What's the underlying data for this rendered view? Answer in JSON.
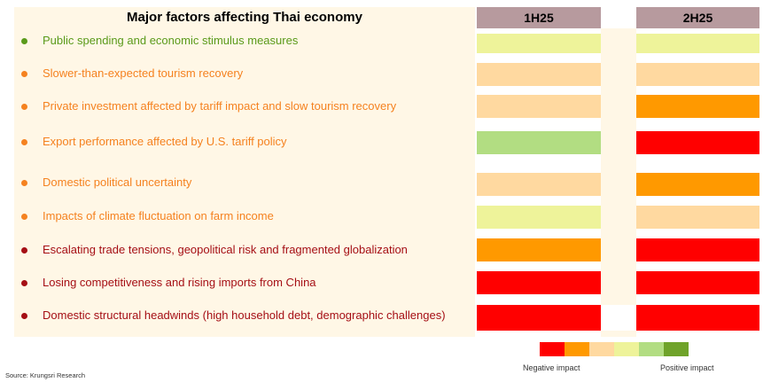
{
  "title": "Major factors affecting Thai economy",
  "columns": [
    "1H25",
    "2H25"
  ],
  "colors": {
    "very_negative": "#FF0000",
    "negative": "#FF9900",
    "slightly_negative": "#FFD9A0",
    "neutral_slight": "#EEF39A",
    "positive": "#B2DD82",
    "very_positive": "#6FA32A",
    "header_bg": "#B79A9E",
    "panel_bg": "#FFF7E6",
    "text_green": "#5A9A1A",
    "text_orange": "#F58220",
    "text_red": "#A50F15"
  },
  "rows": [
    {
      "label": "Public spending and economic stimulus measures",
      "label_color": "#5A9A1A",
      "h1": "#EEF39A",
      "h2": "#EEF39A"
    },
    {
      "label": "Slower-than-expected tourism recovery",
      "label_color": "#F58220",
      "h1": "#FFD9A0",
      "h2": "#FFD9A0"
    },
    {
      "label": "Private investment affected by tariff impact and slow tourism recovery",
      "label_color": "#F58220",
      "h1": "#FFD9A0",
      "h2": "#FF9900"
    },
    {
      "label": "Export performance affected by U.S. tariff policy",
      "label_color": "#F58220",
      "h1": "#B2DD82",
      "h2": "#FF0000"
    },
    {
      "label": "Domestic political uncertainty",
      "label_color": "#F58220",
      "h1": "#FFD9A0",
      "h2": "#FF9900"
    },
    {
      "label": "Impacts of climate fluctuation on farm income",
      "label_color": "#F58220",
      "h1": "#EEF39A",
      "h2": "#FFD9A0"
    },
    {
      "label": "Escalating trade tensions, geopolitical risk and fragmented globalization",
      "label_color": "#A50F15",
      "h1": "#FF9900",
      "h2": "#FF0000"
    },
    {
      "label": "Losing competitiveness and rising imports from China",
      "label_color": "#A50F15",
      "h1": "#FF0000",
      "h2": "#FF0000"
    },
    {
      "label": "Domestic structural headwinds (high household debt, demographic challenges)",
      "label_color": "#A50F15",
      "h1": "#FF0000",
      "h2": "#FF0000"
    }
  ],
  "legend": {
    "swatches": [
      "#FF0000",
      "#FF9900",
      "#FFD9A0",
      "#EEF39A",
      "#B2DD82",
      "#6FA32A"
    ],
    "negative_label": "Negative impact",
    "positive_label": "Positive impact"
  },
  "source": "Source: Krungsri Research"
}
